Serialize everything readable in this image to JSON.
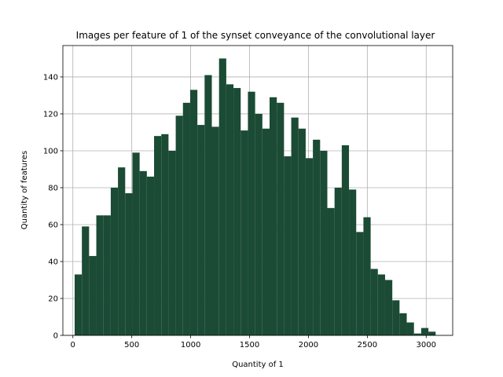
{
  "chart_data": {
    "type": "bar",
    "title": "Images per feature of 1 of the synset conveyance of the convolutional layer",
    "xlabel": "Quantity of 1",
    "ylabel": "Quantity of features",
    "xlim": [
      -85,
      3225
    ],
    "ylim": [
      0,
      157
    ],
    "xticks": [
      0,
      500,
      1000,
      1500,
      2000,
      2500,
      3000
    ],
    "yticks": [
      0,
      20,
      40,
      60,
      80,
      100,
      120,
      140
    ],
    "grid": true,
    "bar_color": "#1b4b35",
    "bin_edges": [
      15,
      76.3,
      137.6,
      198.9,
      260.2,
      321.5,
      382.8,
      444.1,
      505.4,
      566.7,
      628,
      689.3,
      750.6,
      811.9,
      873.2,
      934.5,
      995.8,
      1057.1,
      1118.4,
      1179.7,
      1241,
      1302.3,
      1363.6,
      1424.9,
      1486.2,
      1547.5,
      1608.8,
      1670.1,
      1731.4,
      1792.7,
      1854,
      1915.3,
      1976.6,
      2037.9,
      2099.2,
      2160.5,
      2221.8,
      2283.1,
      2344.4,
      2405.7,
      2467,
      2528.3,
      2589.6,
      2650.9,
      2712.2,
      2773.5,
      2834.8,
      2896.1,
      2957.4,
      3018.7,
      3080
    ],
    "counts": [
      33,
      59,
      43,
      65,
      65,
      80,
      91,
      77,
      99,
      89,
      86,
      108,
      109,
      100,
      119,
      126,
      133,
      114,
      141,
      113,
      150,
      136,
      134,
      111,
      132,
      120,
      112,
      129,
      126,
      97,
      118,
      112,
      96,
      106,
      100,
      69,
      80,
      103,
      79,
      56,
      64,
      36,
      33,
      30,
      19,
      12,
      7,
      1,
      4,
      2
    ]
  }
}
